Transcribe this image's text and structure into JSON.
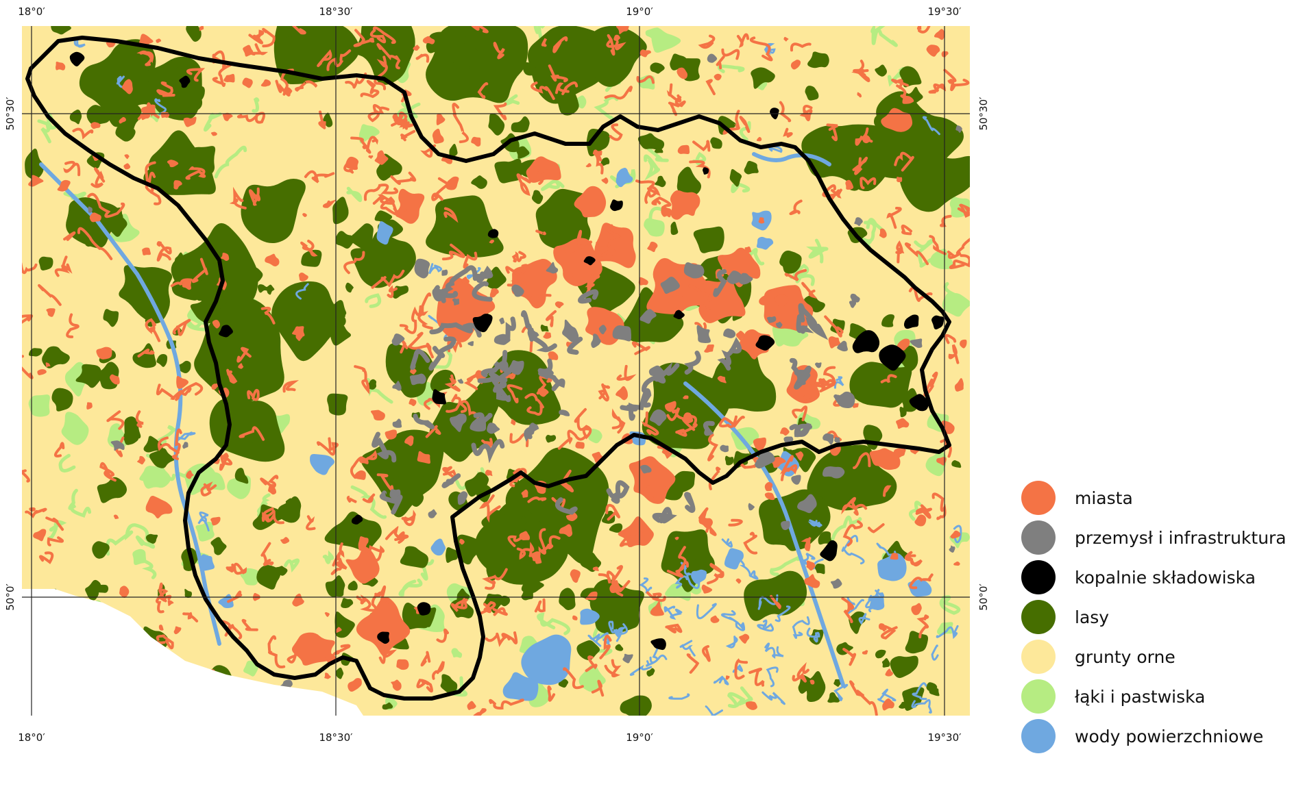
{
  "map": {
    "colors": {
      "arable": "#fde89a",
      "forest": "#466e00",
      "meadow": "#b6ec82",
      "water": "#6fa8e0",
      "city": "#f47345",
      "industry": "#7f7f7f",
      "mine": "#000000",
      "boundary": "#000000",
      "grid": "#222222"
    },
    "longitude_labels": [
      "18°0′",
      "18°30′",
      "19°0′",
      "19°30′"
    ],
    "latitude_labels": [
      "50°30′",
      "50°0′"
    ]
  },
  "legend": [
    {
      "label": "miasta",
      "color": "#f47345"
    },
    {
      "label": "przemysł i infrastruktura",
      "color": "#7f7f7f"
    },
    {
      "label": "kopalnie składowiska",
      "color": "#000000"
    },
    {
      "label": "lasy",
      "color": "#466e00"
    },
    {
      "label": "grunty orne",
      "color": "#fde89a"
    },
    {
      "label": "łąki i pastwiska",
      "color": "#b6ec82"
    },
    {
      "label": "wody powierzchniowe",
      "color": "#6fa8e0"
    }
  ]
}
